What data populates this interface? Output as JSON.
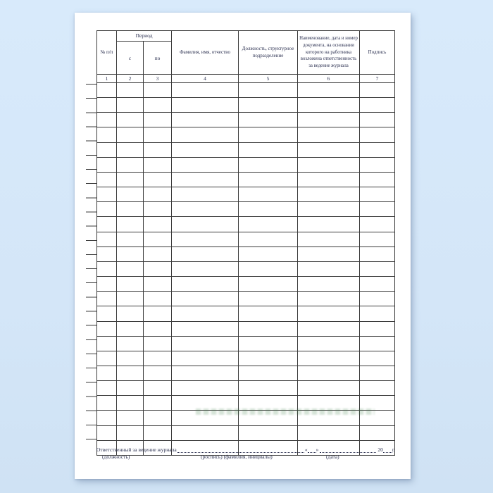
{
  "page": {
    "background_color": "#d6e8f9",
    "paper_color": "#ffffff",
    "text_color": "#2b3050",
    "line_color": "#3b3b3b"
  },
  "table": {
    "header": {
      "col_number": "№ п/п",
      "period_group": "Период",
      "period_from": "с",
      "period_to": "по",
      "full_name": "Фамилия, имя, отчество",
      "position": "Должность, структурное подразделение",
      "document": "Наименование, дата и номер документа, на основании которого на работника возложена ответственность за ведение журнала",
      "signature": "Подпись"
    },
    "column_numbers": [
      "1",
      "2",
      "3",
      "4",
      "5",
      "6",
      "7"
    ],
    "empty_row_count": 25
  },
  "watermark": {
    "color": "#3a7d44"
  },
  "footer": {
    "responsible_label": "Ответственный за ведение журнала",
    "quote_open": "«",
    "quote_close": "»",
    "year_prefix": "20",
    "year_suffix": "г.",
    "position_label": "(должность)",
    "signature_label": "(роспись) (фамилия, инициалы)",
    "date_label": "(дата)"
  }
}
